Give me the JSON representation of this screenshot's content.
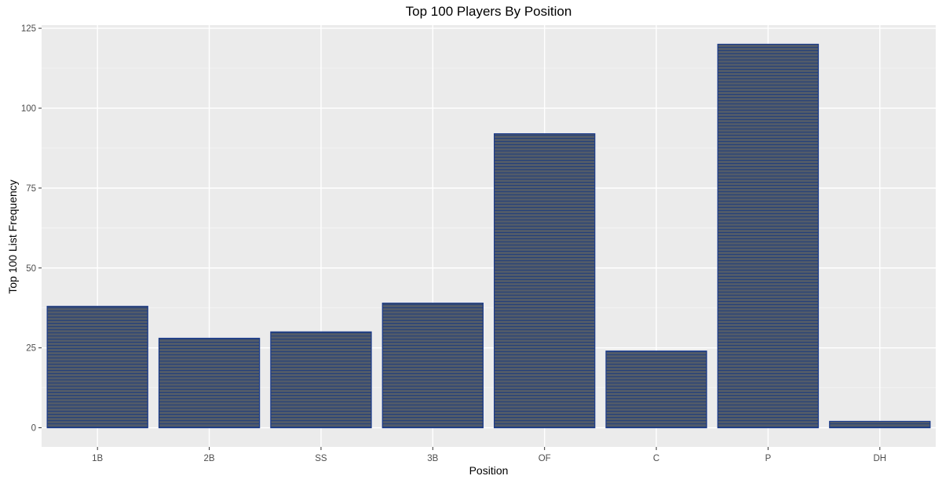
{
  "chart_data": {
    "type": "bar",
    "title": "Top 100 Players By Position",
    "xlabel": "Position",
    "ylabel": "Top 100 List Frequency",
    "categories": [
      "1B",
      "2B",
      "SS",
      "3B",
      "OF",
      "C",
      "P",
      "DH"
    ],
    "values": [
      38,
      28,
      30,
      39,
      92,
      24,
      120,
      2
    ],
    "ylim": [
      -6,
      126
    ],
    "yticks": [
      0,
      25,
      50,
      75,
      100,
      125
    ],
    "grid": true,
    "colors": {
      "panel_background": "#ebebeb",
      "grid_major": "#ffffff",
      "grid_minor": "#f5f5f5",
      "bar_fill": "#505a6a",
      "bar_outline": "#1a3a8a",
      "bar_hatch": "#24407a"
    }
  }
}
